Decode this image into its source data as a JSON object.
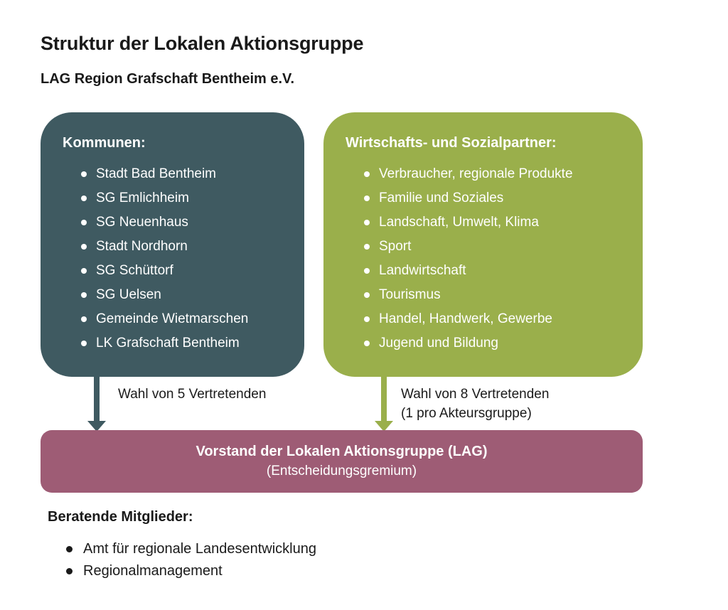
{
  "colors": {
    "teal": "#3F5A61",
    "green": "#9AAF4B",
    "maroon": "#9E5C75"
  },
  "page": {
    "title": "Struktur der Lokalen Aktionsgruppe",
    "subtitle": "LAG Region Grafschaft Bentheim e.V."
  },
  "kommunen_box": {
    "header": "Kommunen:",
    "items": [
      "Stadt Bad Bentheim",
      "SG Emlichheim",
      "SG Neuenhaus",
      "Stadt Nordhorn",
      "SG Schüttorf",
      "SG Uelsen",
      "Gemeinde Wietmarschen",
      "LK Grafschaft Bentheim"
    ]
  },
  "partner_box": {
    "header": "Wirtschafts- und Sozialpartner:",
    "items": [
      "Verbraucher, regionale Produkte",
      "Familie und Soziales",
      "Landschaft, Umwelt, Klima",
      "Sport",
      "Landwirtschaft",
      "Tourismus",
      "Handel, Handwerk, Gewerbe",
      "Jugend und Bildung"
    ]
  },
  "arrows": {
    "left_label": "Wahl von 5 Vertretenden",
    "right_label_line1": "Wahl von 8 Vertretenden",
    "right_label_line2": "(1 pro Akteursgruppe)"
  },
  "vorstand_box": {
    "line1": "Vorstand der Lokalen Aktionsgruppe (LAG)",
    "line2": "(Entscheidungsgremium)"
  },
  "advisory": {
    "header": "Beratende Mitglieder:",
    "items": [
      "Amt für regionale Landesentwicklung",
      "Regionalmanagement"
    ]
  }
}
